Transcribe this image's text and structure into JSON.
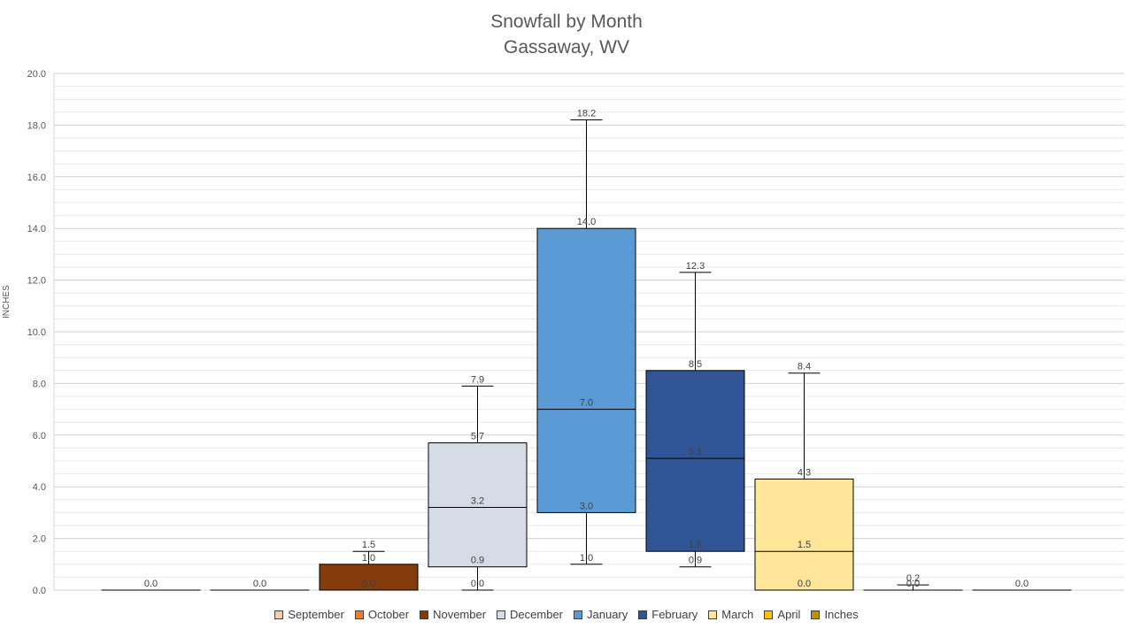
{
  "chart_data": {
    "type": "box",
    "title": "Snowfall by Month",
    "subtitle": "Gassaway, WV",
    "ylabel": "INCHES",
    "ylim": [
      0,
      20
    ],
    "ytick_step": 2,
    "yticks": [
      "0.0",
      "2.0",
      "4.0",
      "6.0",
      "8.0",
      "10.0",
      "12.0",
      "14.0",
      "16.0",
      "18.0",
      "20.0"
    ],
    "grid": true,
    "legend_position": "bottom",
    "categories": [
      "September",
      "October",
      "November",
      "December",
      "January",
      "February",
      "March",
      "April",
      "Inches"
    ],
    "series_colors": [
      "#F8CBAD",
      "#ED7D31",
      "#843C0C",
      "#D6DCE5",
      "#5B9BD5",
      "#2F5597",
      "#FFE699",
      "#FFC000",
      "#BF9000"
    ],
    "boxes": [
      {
        "min": 0.0,
        "q1": 0.0,
        "median": 0.0,
        "q3": 0.0,
        "max": 0.0,
        "color": "#F8CBAD",
        "labels": [
          {
            "value": 0.0,
            "text": "0.0"
          }
        ]
      },
      {
        "min": 0.0,
        "q1": 0.0,
        "median": 0.0,
        "q3": 0.0,
        "max": 0.0,
        "color": "#ED7D31",
        "labels": [
          {
            "value": 0.0,
            "text": "0.0"
          }
        ]
      },
      {
        "min": 0.0,
        "q1": 0.0,
        "median": 0.0,
        "q3": 1.0,
        "max": 1.5,
        "color": "#843C0C",
        "labels": [
          {
            "value": 1.5,
            "text": "1.5"
          },
          {
            "value": 1.0,
            "text": "1.0"
          },
          {
            "value": 0.0,
            "text": "0.0"
          }
        ]
      },
      {
        "min": 0.0,
        "q1": 0.9,
        "median": 3.2,
        "q3": 5.7,
        "max": 7.9,
        "color": "#D6DCE5",
        "labels": [
          {
            "value": 7.9,
            "text": "7.9"
          },
          {
            "value": 5.7,
            "text": "5.7"
          },
          {
            "value": 3.2,
            "text": "3.2"
          },
          {
            "value": 0.9,
            "text": "0.9"
          },
          {
            "value": 0.0,
            "text": "0.0"
          }
        ]
      },
      {
        "min": 1.0,
        "q1": 3.0,
        "median": 7.0,
        "q3": 14.0,
        "max": 18.2,
        "color": "#5B9BD5",
        "labels": [
          {
            "value": 18.2,
            "text": "18.2"
          },
          {
            "value": 14.0,
            "text": "14.0"
          },
          {
            "value": 7.0,
            "text": "7.0"
          },
          {
            "value": 3.0,
            "text": "3.0"
          },
          {
            "value": 1.0,
            "text": "1.0"
          }
        ]
      },
      {
        "min": 0.9,
        "q1": 1.5,
        "median": 5.1,
        "q3": 8.5,
        "max": 12.3,
        "color": "#2F5597",
        "labels": [
          {
            "value": 12.3,
            "text": "12.3"
          },
          {
            "value": 8.5,
            "text": "8.5"
          },
          {
            "value": 5.1,
            "text": "5.1"
          },
          {
            "value": 1.5,
            "text": "1.5"
          },
          {
            "value": 0.9,
            "text": "0.9"
          }
        ]
      },
      {
        "min": 0.0,
        "q1": 0.0,
        "median": 1.5,
        "q3": 4.3,
        "max": 8.4,
        "color": "#FFE699",
        "labels": [
          {
            "value": 8.4,
            "text": "8.4"
          },
          {
            "value": 4.3,
            "text": "4.3"
          },
          {
            "value": 1.5,
            "text": "1.5"
          },
          {
            "value": 0.0,
            "text": "0.0"
          }
        ]
      },
      {
        "min": 0.0,
        "q1": 0.0,
        "median": 0.0,
        "q3": 0.0,
        "max": 0.2,
        "color": "#FFC000",
        "labels": [
          {
            "value": 0.2,
            "text": "0.2"
          },
          {
            "value": 0.0,
            "text": "0.0"
          }
        ]
      },
      {
        "min": 0.0,
        "q1": 0.0,
        "median": 0.0,
        "q3": 0.0,
        "max": 0.0,
        "color": "#BF9000",
        "labels": [
          {
            "value": 0.0,
            "text": "0.0"
          }
        ]
      }
    ]
  },
  "legend": [
    {
      "label": "September",
      "color": "#F8CBAD"
    },
    {
      "label": "October",
      "color": "#ED7D31"
    },
    {
      "label": "November",
      "color": "#843C0C"
    },
    {
      "label": "December",
      "color": "#D6DCE5"
    },
    {
      "label": "January",
      "color": "#5B9BD5"
    },
    {
      "label": "February",
      "color": "#2F5597"
    },
    {
      "label": "March",
      "color": "#FFE699"
    },
    {
      "label": "April",
      "color": "#FFC000"
    },
    {
      "label": "Inches",
      "color": "#BF9000"
    }
  ]
}
